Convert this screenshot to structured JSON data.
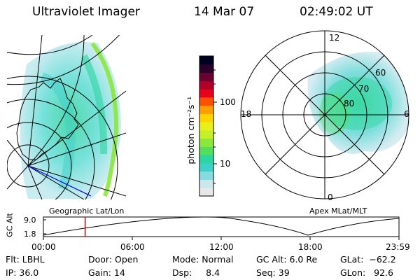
{
  "header": {
    "instrument": "Ultraviolet Imager",
    "date": "14 Mar 07",
    "time": "02:49:02 UT"
  },
  "colorbar": {
    "label": "photon cm⁻²s⁻¹",
    "ticks": [
      "100",
      "10"
    ],
    "colors": [
      "#e8e8e8",
      "#c8e8ee",
      "#86dbe0",
      "#3fd0c8",
      "#2bd6a0",
      "#52e05c",
      "#8ae83a",
      "#c4f028",
      "#e8f018",
      "#ffd400",
      "#ff9c00",
      "#ff5000",
      "#e8001c",
      "#b0002a",
      "#6a0030",
      "#2a0028",
      "#000020"
    ]
  },
  "left_panel": {
    "label": "Geographic Lat/Lon"
  },
  "polar_plot": {
    "label": "Apex MLat/MLT",
    "mlt_labels": [
      "12",
      "18",
      "6",
      "0"
    ],
    "lat_labels": [
      "60",
      "70",
      "80"
    ]
  },
  "altitude_plot": {
    "ylabel": "GC Alt",
    "y_ticks": [
      "9.0",
      "1.8"
    ],
    "x_ticks": [
      "00:00",
      "06:00",
      "12:00",
      "18:00",
      "23:59"
    ],
    "marker_time_hours": 2.82
  },
  "footer": {
    "flt": "Flt: LBHL",
    "ip": "IP: 36.0",
    "door": "Door: Open",
    "gain": "Gain: 14",
    "mode": "Mode: Normal",
    "dsp": "Dsp:     8.4",
    "gc_alt": "GC Alt: 6.0 Re",
    "seq": "Seq: 39",
    "glat": "GLat:  −62.2",
    "glon": "GLon:   92.6"
  }
}
